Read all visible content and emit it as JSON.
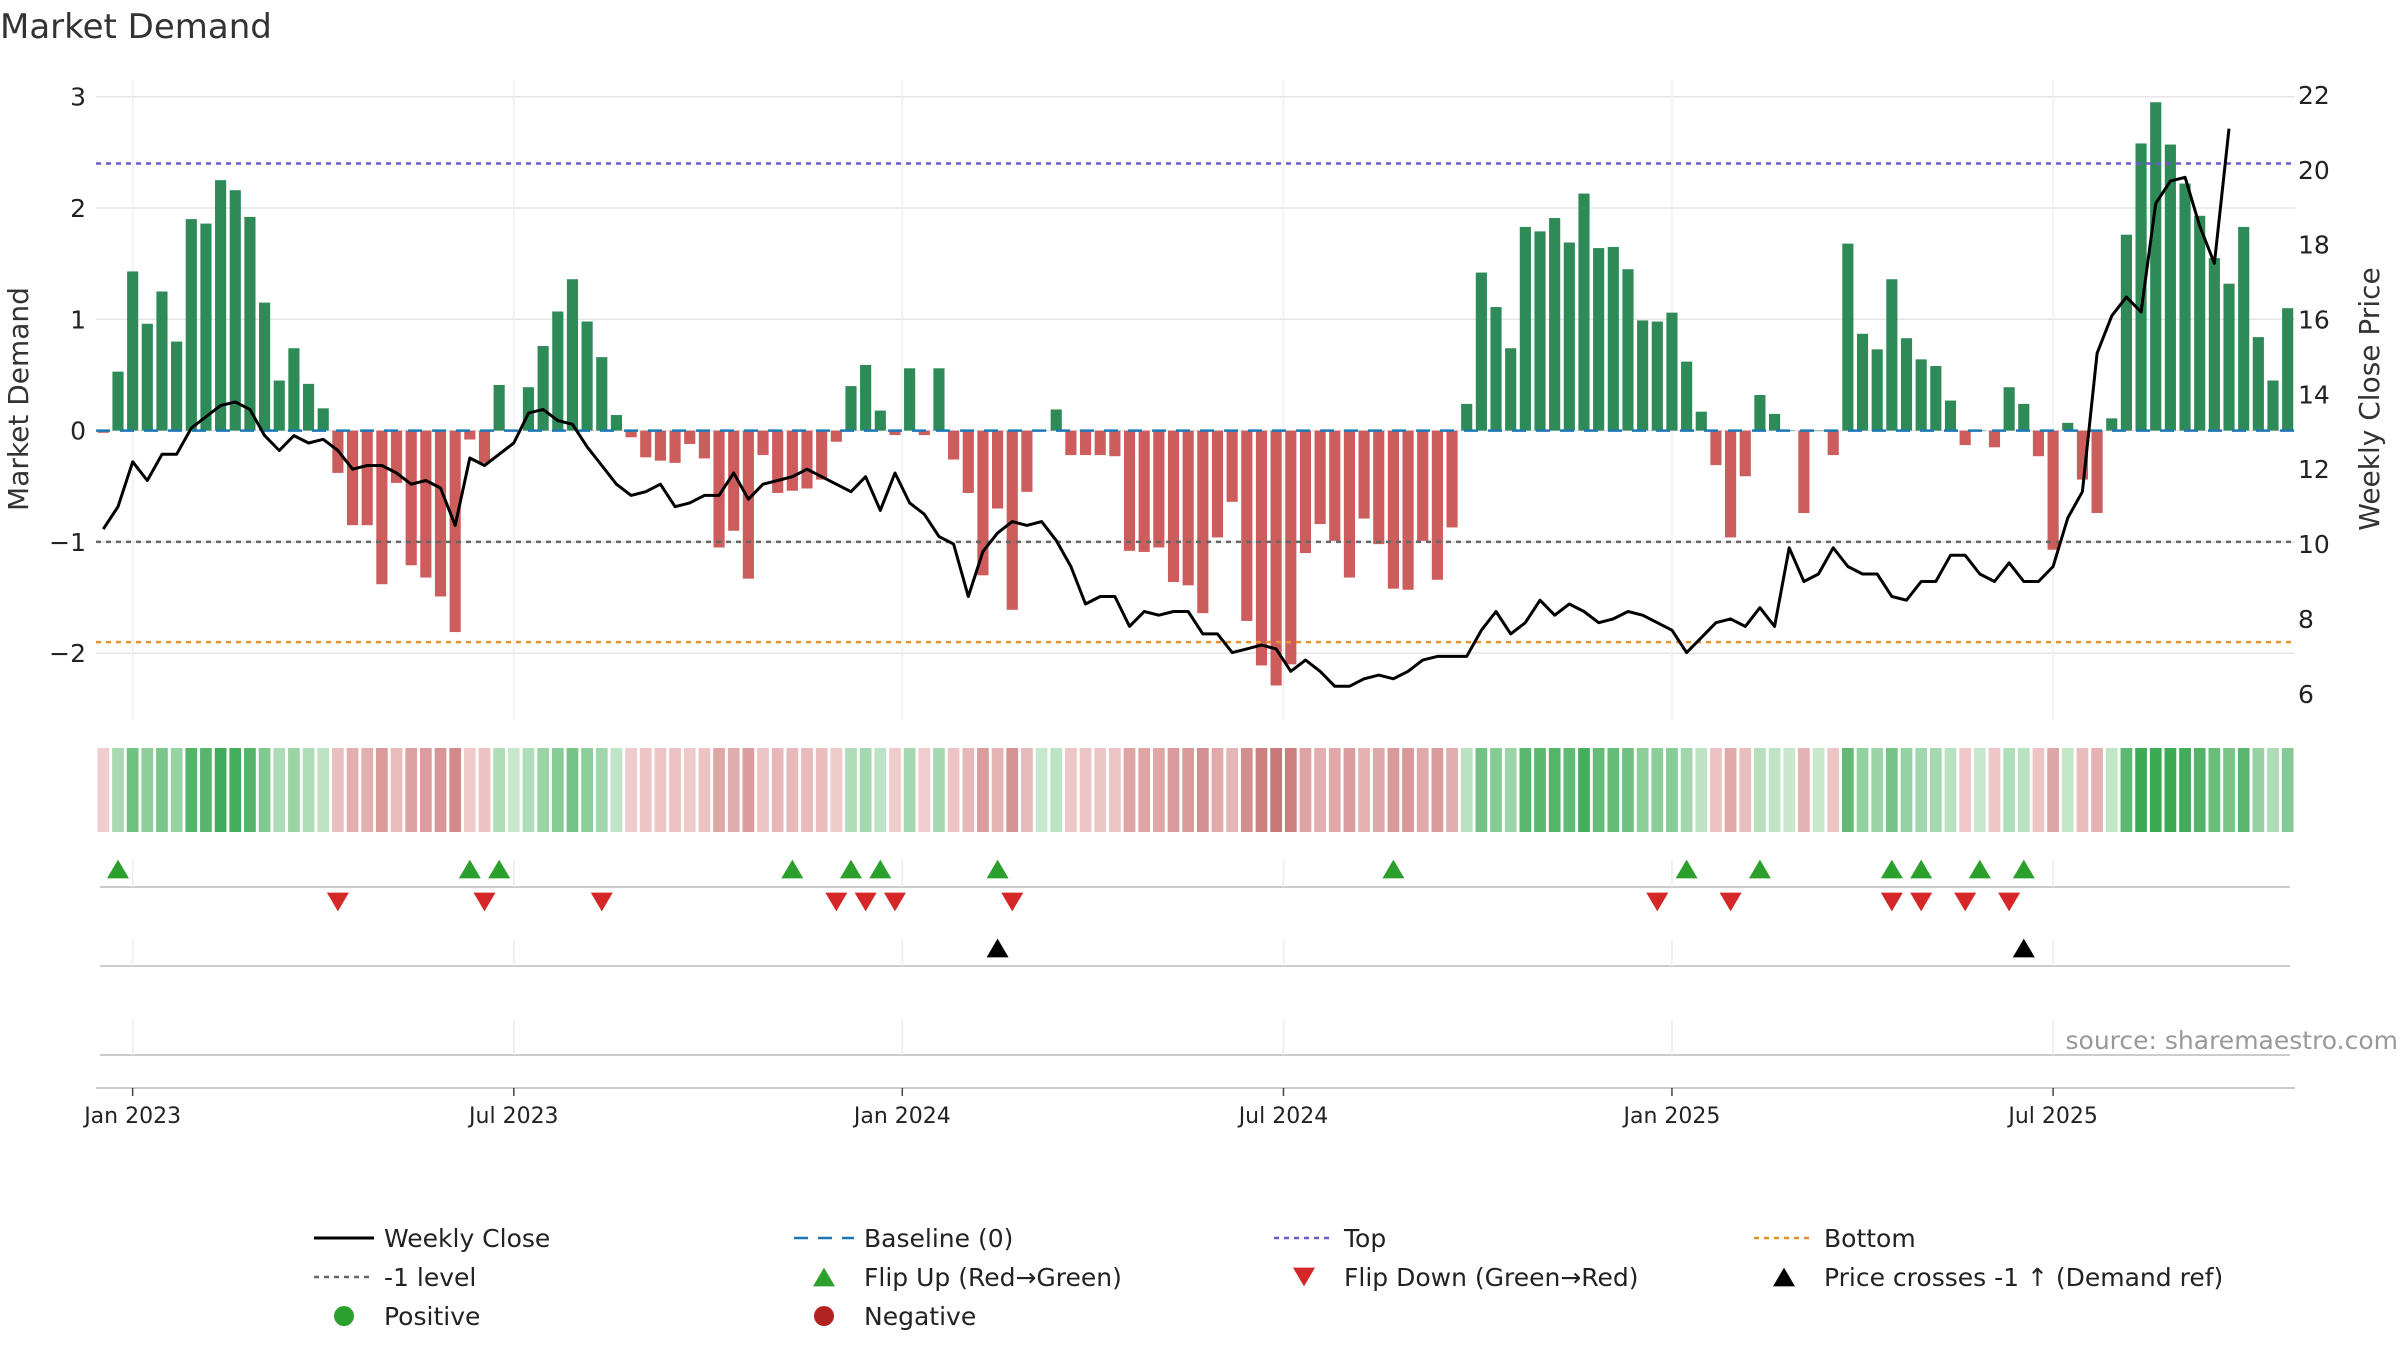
{
  "chart_data": {
    "type": "bar",
    "title": "Market Demand",
    "ylabel": "Market Demand",
    "y2label": "Weekly Close Price",
    "source": "source: sharemaestro.com",
    "ylim": [
      -2.6,
      3.15
    ],
    "y2lim": [
      5.3,
      22.4
    ],
    "yticks": [
      -2,
      -1,
      0,
      1,
      2,
      3
    ],
    "yticklabels": [
      "−2",
      "−1",
      "0",
      "1",
      "2",
      "3"
    ],
    "y2ticks": [
      6,
      8,
      10,
      12,
      14,
      16,
      18,
      20,
      22
    ],
    "y2ticklabels": [
      "6",
      "8",
      "10",
      "12",
      "14",
      "16",
      "18",
      "20",
      "22"
    ],
    "weeks": 146,
    "xticks": [
      {
        "week": 2,
        "label": "Jan 2023"
      },
      {
        "week": 28,
        "label": "Jul 2023"
      },
      {
        "week": 54.5,
        "label": "Jan 2024"
      },
      {
        "week": 80.5,
        "label": "Jul 2024"
      },
      {
        "week": 107,
        "label": "Jan 2025"
      },
      {
        "week": 133,
        "label": "Jul 2025"
      }
    ],
    "levels": {
      "top": 2.4,
      "minus_one": -1,
      "bottom": -1.9,
      "baseline": 0
    },
    "series": [
      {
        "name": "Market Demand",
        "values": [
          -0.02,
          0.53,
          1.43,
          0.96,
          1.25,
          0.8,
          1.9,
          1.86,
          2.25,
          2.16,
          1.92,
          1.15,
          0.45,
          0.74,
          0.42,
          0.2,
          -0.38,
          -0.85,
          -0.85,
          -1.38,
          -0.47,
          -1.21,
          -1.32,
          -1.49,
          -1.81,
          -0.08,
          -0.29,
          0.41,
          0.0,
          0.39,
          0.76,
          1.07,
          1.36,
          0.98,
          0.66,
          0.14,
          -0.06,
          -0.24,
          -0.27,
          -0.29,
          -0.12,
          -0.25,
          -1.05,
          -0.9,
          -1.33,
          -0.22,
          -0.56,
          -0.54,
          -0.52,
          -0.44,
          -0.1,
          0.4,
          0.59,
          0.18,
          -0.04,
          0.56,
          -0.04,
          0.56,
          -0.26,
          -0.56,
          -1.3,
          -0.7,
          -1.61,
          -0.55,
          0.0,
          0.19,
          -0.22,
          -0.22,
          -0.22,
          -0.23,
          -1.08,
          -1.09,
          -1.05,
          -1.36,
          -1.39,
          -1.64,
          -0.96,
          -0.64,
          -1.71,
          -2.11,
          -2.29,
          -2.1,
          -1.1,
          -0.84,
          -0.99,
          -1.32,
          -0.79,
          -1.02,
          -1.42,
          -1.43,
          -0.99,
          -1.34,
          -0.87,
          0.24,
          1.42,
          1.11,
          0.74,
          1.83,
          1.79,
          1.91,
          1.69,
          2.13,
          1.64,
          1.65,
          1.45,
          0.99,
          0.98,
          1.06,
          0.62,
          0.17,
          -0.31,
          -0.96,
          -0.41,
          0.32,
          0.15,
          0.0,
          -0.74,
          0.0,
          -0.22,
          1.68,
          0.87,
          0.73,
          1.36,
          0.83,
          0.64,
          0.58,
          0.27,
          -0.13,
          0.0,
          -0.15,
          0.39,
          0.24,
          -0.23,
          -1.07,
          0.07,
          -0.44,
          -0.74,
          0.11,
          1.76,
          2.58,
          2.95,
          2.57,
          2.22,
          1.93,
          1.55,
          1.32,
          1.83,
          0.84,
          0.45,
          1.1
        ]
      },
      {
        "name": "Weekly Close",
        "values": [
          10.4,
          11.0,
          12.2,
          11.7,
          12.4,
          12.4,
          13.1,
          13.4,
          13.7,
          13.8,
          13.6,
          12.9,
          12.5,
          12.9,
          12.7,
          12.8,
          12.5,
          12.0,
          12.1,
          12.1,
          11.9,
          11.6,
          11.7,
          11.5,
          10.5,
          12.3,
          12.1,
          12.4,
          12.7,
          13.5,
          13.6,
          13.3,
          13.2,
          12.6,
          12.1,
          11.6,
          11.3,
          11.4,
          11.6,
          11.0,
          11.1,
          11.3,
          11.3,
          11.9,
          11.2,
          11.6,
          11.7,
          11.8,
          12.0,
          11.8,
          11.6,
          11.4,
          11.8,
          10.9,
          11.9,
          11.1,
          10.8,
          10.2,
          10.0,
          8.6,
          9.8,
          10.3,
          10.6,
          10.5,
          10.6,
          10.1,
          9.4,
          8.4,
          8.6,
          8.6,
          7.8,
          8.2,
          8.1,
          8.2,
          8.2,
          7.6,
          7.6,
          7.1,
          7.2,
          7.3,
          7.2,
          6.6,
          6.9,
          6.6,
          6.2,
          6.2,
          6.4,
          6.5,
          6.4,
          6.6,
          6.9,
          7.0,
          7.0,
          7.0,
          7.7,
          8.2,
          7.6,
          7.9,
          8.5,
          8.1,
          8.4,
          8.2,
          7.9,
          8.0,
          8.2,
          8.1,
          7.9,
          7.7,
          7.1,
          7.5,
          7.9,
          8.0,
          7.8,
          8.3,
          7.8,
          9.9,
          9.0,
          9.2,
          9.9,
          9.4,
          9.2,
          9.2,
          8.6,
          8.5,
          9.0,
          9.0,
          9.7,
          9.7,
          9.2,
          9.0,
          9.5,
          9.0,
          9.0,
          9.4,
          10.7,
          11.4,
          15.1,
          16.1,
          16.6,
          16.2,
          19.1,
          19.7,
          19.8,
          18.5,
          17.5,
          21.1
        ]
      }
    ],
    "flip_up_weeks": [
      1,
      25,
      27,
      47,
      51,
      53,
      61,
      88,
      108,
      113,
      122,
      124,
      128,
      131
    ],
    "flip_down_weeks": [
      16,
      26,
      34,
      50,
      52,
      54,
      62,
      106,
      111,
      122,
      124,
      127,
      130
    ],
    "price_cross_weeks": [
      61,
      131
    ],
    "legend_placement": "bottom",
    "legend": [
      {
        "label": "Weekly Close",
        "kind": "line",
        "color": "#000000"
      },
      {
        "label": "Baseline (0)",
        "kind": "dash",
        "color": "#1f77b4"
      },
      {
        "label": "Top",
        "kind": "dot",
        "color": "#6a5acd"
      },
      {
        "label": "Bottom",
        "kind": "dot",
        "color": "#e0902a"
      },
      {
        "label": "-1 level",
        "kind": "dot",
        "color": "#666666"
      },
      {
        "label": "Flip Up (Red→Green)",
        "kind": "tri-up",
        "color": "#2ca02c"
      },
      {
        "label": "Flip Down (Green→Red)",
        "kind": "tri-down",
        "color": "#d62728"
      },
      {
        "label": "Price crosses -1 ↑ (Demand ref)",
        "kind": "tri-up",
        "color": "#000000"
      },
      {
        "label": "Positive",
        "kind": "circle",
        "color": "#2ca02c"
      },
      {
        "label": "Negative",
        "kind": "circle",
        "color": "#b22222"
      }
    ],
    "colors": {
      "positive_bar": "#2e8b57",
      "negative_bar": "#cd5c5c",
      "price_line": "#000000",
      "top_line": "#6a5acd",
      "bottom_line": "#e8912e",
      "minus_one_line": "#666666",
      "baseline": "#1f77b4",
      "flip_up": "#2ca02c",
      "flip_down": "#d62728",
      "cross_marker": "#000000",
      "grid": "#e6e6e6",
      "source_text": "#999999"
    }
  }
}
